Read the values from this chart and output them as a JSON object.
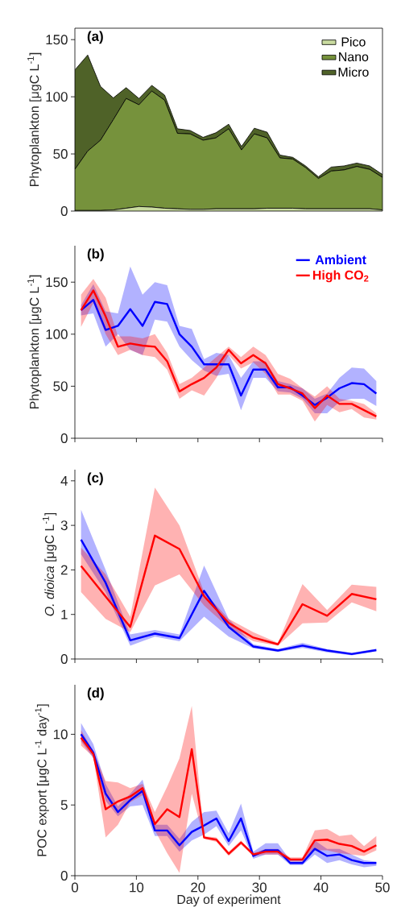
{
  "chart_data": [
    {
      "type": "area",
      "title": "(a)",
      "ylabel": "Phytoplankton [μgC L$^{-1}$]",
      "stacked": true,
      "legend": "top right",
      "tick_labels": "y",
      "categories": [
        null,
        null,
        null,
        null,
        null,
        null,
        null,
        null,
        null,
        null,
        null,
        null,
        null,
        null,
        null,
        null,
        null,
        null,
        null,
        null,
        null,
        null,
        null,
        null,
        null
      ],
      "ylim": [
        0,
        160
      ],
      "yticks": [
        0,
        50,
        100,
        150
      ],
      "series": [
        {
          "name": "Pico",
          "color": "#c9dba0",
          "values": [
            0.5,
            0.5,
            0.5,
            1,
            2.5,
            4,
            3.5,
            2.5,
            2,
            1.5,
            1.5,
            2,
            2,
            2,
            2,
            2.5,
            2.5,
            2.5,
            2,
            2,
            2,
            2,
            2,
            2,
            1
          ]
        },
        {
          "name": "Nano",
          "color": "#76923c",
          "values": [
            36,
            52,
            61.5,
            79,
            96,
            89,
            101.5,
            94.5,
            66,
            66,
            60.5,
            62,
            70,
            51.5,
            65.5,
            61.5,
            44,
            43,
            36,
            26.5,
            33,
            34,
            37,
            34.5,
            28.5
          ]
        },
        {
          "name": "Micro",
          "color": "#4f6228",
          "values": [
            87,
            84,
            47,
            19,
            9.5,
            5.5,
            5,
            4.5,
            4,
            3,
            2.5,
            4.5,
            4,
            3,
            5,
            5,
            2.5,
            1.5,
            1.5,
            1.5,
            3.5,
            3.5,
            3,
            3,
            2.5
          ]
        }
      ]
    },
    {
      "type": "line",
      "title": "(b)",
      "ylabel": "Phytoplankton [μgC L$^{-1}$]",
      "legend": "top right",
      "tick_labels": "y",
      "x": [
        1,
        3,
        5,
        7,
        9,
        11,
        13,
        15,
        17,
        19,
        21,
        23,
        25,
        27,
        29,
        31,
        33,
        35,
        37,
        39,
        41,
        43,
        45,
        47,
        49
      ],
      "xlim": [
        0,
        50
      ],
      "xticks": [
        0,
        10,
        20,
        30,
        40,
        50
      ],
      "ylim": [
        0,
        185
      ],
      "yticks": [
        0,
        50,
        100,
        150
      ],
      "series": [
        {
          "name": "Ambient",
          "color": "#0000ff",
          "values": [
            123,
            133,
            104,
            108,
            124,
            108,
            131,
            129,
            100,
            88,
            71,
            71,
            71,
            41,
            66,
            66,
            49,
            49,
            41,
            32,
            39,
            48,
            53,
            52,
            43
          ],
          "lower": [
            118,
            120,
            88,
            100,
            85,
            80,
            114,
            112,
            88,
            75,
            65,
            60,
            62,
            27,
            58,
            58,
            45,
            44,
            38,
            24,
            24,
            35,
            38,
            38,
            31
          ],
          "upper": [
            128,
            148,
            122,
            120,
            165,
            138,
            150,
            147,
            108,
            105,
            76,
            82,
            80,
            58,
            74,
            74,
            55,
            52,
            48,
            38,
            43,
            58,
            68,
            67,
            55
          ]
        },
        {
          "name": "High CO$_{2}$",
          "color": "#ff0000",
          "values": [
            123,
            142,
            117,
            88,
            91,
            89,
            88,
            74,
            45,
            52,
            58,
            68,
            85,
            72,
            80,
            72,
            52,
            48,
            43,
            29,
            41,
            33,
            33,
            27,
            21
          ],
          "lower": [
            107,
            130,
            100,
            80,
            85,
            80,
            78,
            66,
            38,
            46,
            41,
            58,
            80,
            67,
            73,
            62,
            42,
            42,
            36,
            16,
            32,
            25,
            28,
            20,
            18
          ],
          "upper": [
            138,
            153,
            135,
            98,
            98,
            96,
            100,
            82,
            52,
            58,
            68,
            78,
            88,
            78,
            88,
            80,
            62,
            57,
            48,
            40,
            50,
            38,
            36,
            33,
            24
          ]
        }
      ]
    },
    {
      "type": "line",
      "title": "(c)",
      "ylabel": "*O. dioica* [μgC L$^{-1}$]",
      "tick_labels": "y",
      "x": [
        1,
        5,
        9,
        13,
        17,
        21,
        25,
        29,
        33,
        37,
        41,
        45,
        49
      ],
      "xlim": [
        0,
        50
      ],
      "xticks": [
        0,
        10,
        20,
        30,
        40,
        50
      ],
      "ylim": [
        0,
        4.25
      ],
      "yticks": [
        0,
        1,
        2,
        3,
        4
      ],
      "series": [
        {
          "color": "#0000ff",
          "values": [
            2.68,
            1.71,
            0.42,
            0.57,
            0.47,
            1.53,
            0.72,
            0.28,
            0.19,
            0.3,
            0.19,
            0.11,
            0.2
          ],
          "lower": [
            2.35,
            1.5,
            0.3,
            0.5,
            0.4,
            0.95,
            0.5,
            0.24,
            0.16,
            0.25,
            0.15,
            0.08,
            0.17
          ],
          "upper": [
            3.35,
            2.0,
            0.55,
            0.65,
            0.55,
            2.1,
            0.9,
            0.33,
            0.22,
            0.36,
            0.22,
            0.14,
            0.23
          ]
        },
        {
          "color": "#ff0000",
          "values": [
            2.09,
            1.4,
            0.72,
            2.77,
            2.47,
            1.41,
            0.81,
            0.48,
            0.33,
            1.23,
            0.97,
            1.46,
            1.34
          ],
          "lower": [
            1.5,
            0.9,
            0.6,
            1.65,
            1.9,
            1.2,
            0.7,
            0.4,
            0.3,
            0.8,
            0.82,
            1.27,
            1.07
          ],
          "upper": [
            2.5,
            1.9,
            0.95,
            3.85,
            3.0,
            1.5,
            0.9,
            0.6,
            0.36,
            1.68,
            1.1,
            1.67,
            1.62
          ]
        }
      ]
    },
    {
      "type": "line",
      "title": "(d)",
      "ylabel": "POC export [μgC L$^{-1}$ day$^{-1}$]",
      "xlabel": "Day of experiment",
      "x": [
        1,
        3,
        5,
        7,
        9,
        11,
        13,
        15,
        17,
        19,
        21,
        23,
        25,
        27,
        29,
        31,
        33,
        35,
        37,
        39,
        41,
        43,
        45,
        47,
        49
      ],
      "xlim": [
        0,
        50
      ],
      "xticks": [
        0,
        10,
        20,
        30,
        40,
        50
      ],
      "ylim": [
        0,
        13.5
      ],
      "yticks": [
        0,
        5,
        10
      ],
      "series": [
        {
          "color": "#0000ff",
          "values": [
            10.0,
            8.7,
            5.8,
            4.5,
            5.35,
            6.0,
            3.2,
            3.2,
            2.15,
            3.1,
            3.55,
            4.05,
            2.45,
            4.05,
            1.4,
            1.8,
            1.8,
            0.9,
            0.9,
            1.9,
            1.4,
            1.5,
            1.1,
            0.9,
            0.9
          ],
          "lower": [
            9.5,
            8.3,
            5.3,
            4.2,
            4.9,
            5.0,
            2.8,
            2.8,
            1.7,
            2.5,
            2.9,
            3.5,
            2.1,
            3.2,
            1.2,
            1.5,
            1.5,
            0.75,
            0.75,
            1.5,
            0.9,
            1.1,
            0.8,
            0.6,
            0.7
          ],
          "upper": [
            10.8,
            9.3,
            6.5,
            4.9,
            5.8,
            6.8,
            3.6,
            3.6,
            2.6,
            3.8,
            4.5,
            4.6,
            3.0,
            5.1,
            1.7,
            2.3,
            2.3,
            1.1,
            1.1,
            2.5,
            1.9,
            1.9,
            1.5,
            1.1,
            1.0
          ]
        },
        {
          "color": "#ff0000",
          "values": [
            9.75,
            8.6,
            4.7,
            5.25,
            5.6,
            6.2,
            3.65,
            4.7,
            4.15,
            8.95,
            2.7,
            2.55,
            1.55,
            2.35,
            1.5,
            1.7,
            1.7,
            1.15,
            1.15,
            2.5,
            2.55,
            2.25,
            2.1,
            1.7,
            2.15
          ],
          "lower": [
            9.2,
            8.4,
            2.7,
            3.6,
            5.2,
            5.7,
            3.2,
            1.6,
            0.2,
            5.8,
            2.6,
            2.4,
            1.4,
            2.2,
            1.4,
            1.5,
            1.5,
            1.0,
            1.0,
            1.8,
            1.8,
            1.6,
            1.5,
            1.4,
            1.8
          ],
          "upper": [
            10.3,
            8.8,
            6.7,
            6.6,
            6.2,
            6.5,
            4.5,
            6.3,
            8.3,
            12,
            2.8,
            2.7,
            1.7,
            2.5,
            1.6,
            1.9,
            1.9,
            1.3,
            1.3,
            3.2,
            3.3,
            2.8,
            2.9,
            2.1,
            2.8
          ]
        }
      ]
    }
  ]
}
